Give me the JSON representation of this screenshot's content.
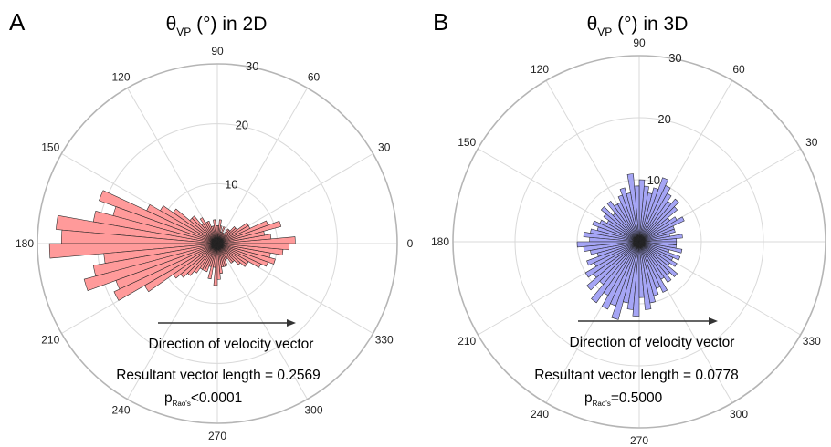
{
  "chart_data": [
    {
      "type": "polar-histogram",
      "panel_label": "A",
      "title": {
        "main": "θ",
        "sub": "VP",
        "suffix": " (°) in 2D"
      },
      "angle_ticks": [
        "0",
        "30",
        "60",
        "90",
        "120",
        "150",
        "180",
        "210",
        "240",
        "270",
        "300",
        "330"
      ],
      "radial_ticks": [
        "10",
        "20",
        "30"
      ],
      "rmax": 30,
      "bar_color": "#ff9a9a",
      "bins_deg": [
        0,
        5,
        10,
        15,
        20,
        25,
        30,
        35,
        40,
        45,
        50,
        55,
        60,
        65,
        70,
        75,
        80,
        85,
        90,
        95,
        100,
        105,
        110,
        115,
        120,
        125,
        130,
        135,
        140,
        145,
        150,
        155,
        160,
        165,
        170,
        175,
        180,
        185,
        190,
        195,
        200,
        205,
        210,
        215,
        220,
        225,
        230,
        235,
        240,
        245,
        250,
        255,
        260,
        265,
        270,
        275,
        280,
        285,
        290,
        295,
        300,
        305,
        310,
        315,
        320,
        325,
        330,
        335,
        340,
        345,
        350,
        355
      ],
      "values": [
        13,
        9,
        8,
        11,
        9,
        6,
        6,
        4,
        4,
        3,
        3,
        2,
        2,
        3,
        2,
        3,
        4,
        3,
        3,
        4,
        3,
        3,
        4,
        4,
        5,
        4,
        6,
        6,
        9,
        11,
        13,
        21,
        18,
        21,
        27,
        26,
        28,
        19,
        21,
        23,
        18,
        19,
        14,
        9,
        8,
        7,
        6,
        5,
        5,
        5,
        4,
        6,
        4,
        7,
        6,
        5,
        4,
        4,
        4,
        3,
        3,
        4,
        4,
        5,
        6,
        6,
        8,
        9,
        10,
        9,
        11,
        12
      ],
      "arrow_label": "Direction of velocity vector",
      "resultant_text": "Resultant vector length = 0.2569",
      "p_main": "p",
      "p_sub": "Rao's",
      "p_value": "<0.0001"
    },
    {
      "type": "polar-histogram",
      "panel_label": "B",
      "title": {
        "main": "θ",
        "sub": "VP",
        "suffix": " (°)  in 3D"
      },
      "angle_ticks": [
        "0",
        "30",
        "60",
        "90",
        "120",
        "150",
        "180",
        "210",
        "240",
        "270",
        "300",
        "330"
      ],
      "radial_ticks": [
        "10",
        "20",
        "30"
      ],
      "rmax": 30,
      "bar_color": "#a5a5f5",
      "bins_deg": [
        0,
        5,
        10,
        15,
        20,
        25,
        30,
        35,
        40,
        45,
        50,
        55,
        60,
        65,
        70,
        75,
        80,
        85,
        90,
        95,
        100,
        105,
        110,
        115,
        120,
        125,
        130,
        135,
        140,
        145,
        150,
        155,
        160,
        165,
        170,
        175,
        180,
        185,
        190,
        195,
        200,
        205,
        210,
        215,
        220,
        225,
        230,
        235,
        240,
        245,
        250,
        255,
        260,
        265,
        270,
        275,
        280,
        285,
        290,
        295,
        300,
        305,
        310,
        315,
        320,
        325,
        330,
        335,
        340,
        345,
        350,
        355
      ],
      "values": [
        6,
        7,
        5,
        6,
        6,
        8,
        7,
        6,
        8,
        9,
        8,
        9,
        10,
        11,
        9,
        8,
        9,
        10,
        9,
        11,
        8,
        9,
        8,
        7,
        7,
        8,
        6,
        8,
        7,
        6,
        7,
        8,
        7,
        8,
        9,
        8,
        10,
        9,
        8,
        7,
        9,
        8,
        10,
        9,
        11,
        9,
        12,
        10,
        12,
        11,
        13,
        10,
        11,
        12,
        9,
        11,
        10,
        9,
        8,
        9,
        7,
        8,
        7,
        8,
        6,
        7,
        6,
        7,
        5,
        7,
        6,
        6
      ],
      "arrow_label": "Direction of velocity vector",
      "resultant_text": "Resultant vector length = 0.0778",
      "p_main": "p",
      "p_sub": "Rao's",
      "p_value": "=0.5000"
    }
  ]
}
